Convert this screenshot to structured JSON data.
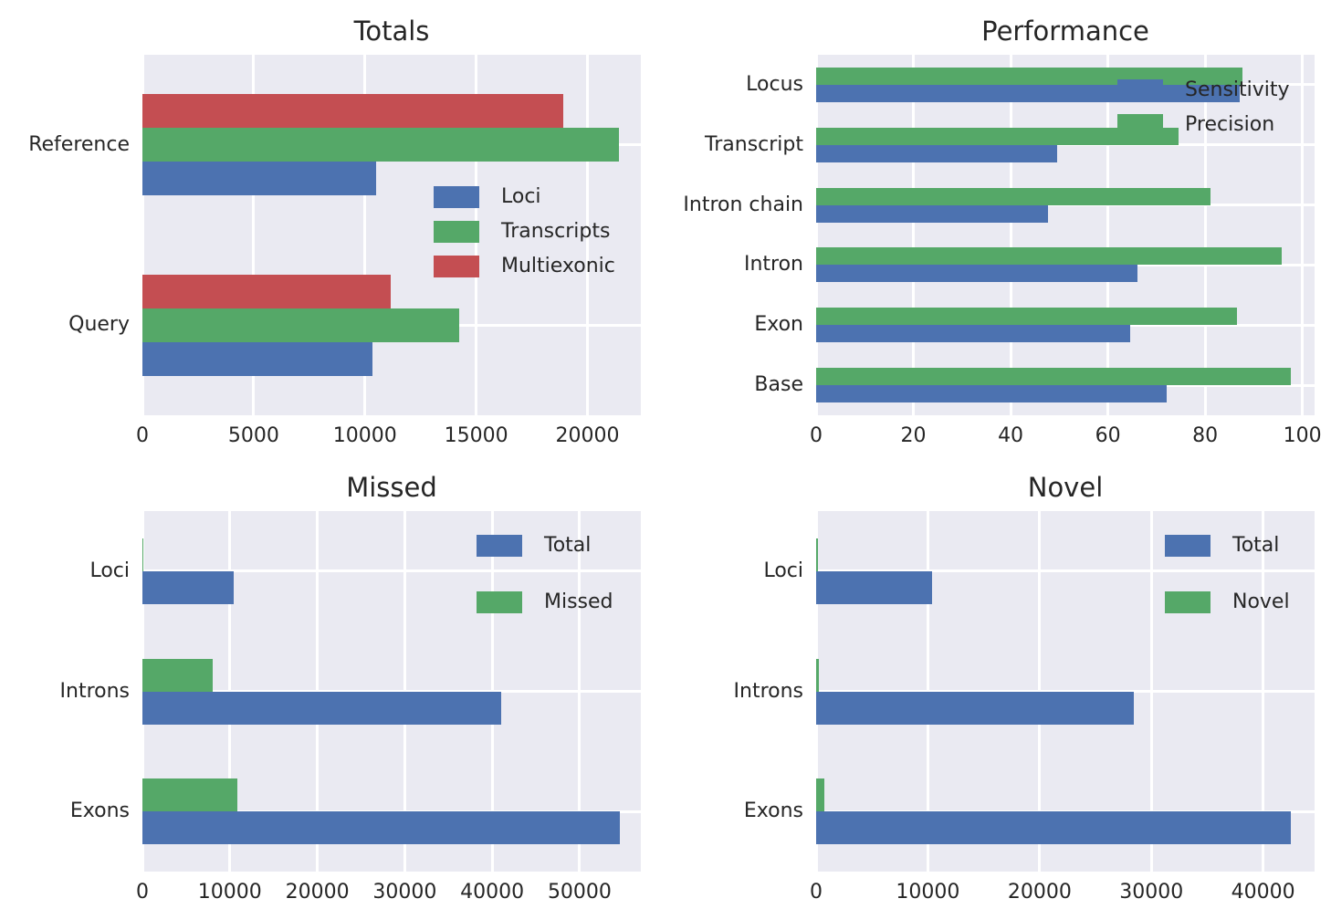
{
  "figure": {
    "background_color": "#ffffff",
    "plot_background_color": "#EAEAF2",
    "grid_color": "#ffffff",
    "text_color": "#262626",
    "palette": {
      "blue": "#4C72B0",
      "green": "#55A868",
      "red": "#C44E52"
    }
  },
  "chart_data": [
    {
      "id": "totals",
      "type": "bar",
      "orientation": "horizontal",
      "title": "Totals",
      "categories": [
        "Reference",
        "Query"
      ],
      "series": [
        {
          "name": "Loci",
          "color": "#4C72B0",
          "values": [
            10500,
            10350
          ]
        },
        {
          "name": "Transcripts",
          "color": "#55A868",
          "values": [
            21400,
            14250
          ]
        },
        {
          "name": "Multiexonic",
          "color": "#C44E52",
          "values": [
            18900,
            11150
          ]
        }
      ],
      "xlim": [
        0,
        22400
      ],
      "xticks": [
        0,
        5000,
        10000,
        15000,
        20000
      ],
      "grid": true,
      "legend_position": "center-right"
    },
    {
      "id": "performance",
      "type": "bar",
      "orientation": "horizontal",
      "title": "Performance",
      "categories": [
        "Locus",
        "Transcript",
        "Intron chain",
        "Intron",
        "Exon",
        "Base"
      ],
      "series": [
        {
          "name": "Sensitivity",
          "color": "#4C72B0",
          "values": [
            87.2,
            49.5,
            47.6,
            66.0,
            64.6,
            72.1
          ]
        },
        {
          "name": "Precision",
          "color": "#55A868",
          "values": [
            87.7,
            74.5,
            81.1,
            95.8,
            86.5,
            97.6
          ]
        }
      ],
      "xlim": [
        0,
        102.5
      ],
      "xticks": [
        0,
        20,
        40,
        60,
        80,
        100
      ],
      "grid": true,
      "legend_position": "top-right"
    },
    {
      "id": "missed",
      "type": "bar",
      "orientation": "horizontal",
      "title": "Missed",
      "categories": [
        "Loci",
        "Introns",
        "Exons"
      ],
      "series": [
        {
          "name": "Total",
          "color": "#4C72B0",
          "values": [
            10450,
            41000,
            54600
          ]
        },
        {
          "name": "Missed",
          "color": "#55A868",
          "values": [
            60,
            8050,
            10850
          ]
        }
      ],
      "xlim": [
        0,
        57000
      ],
      "xticks": [
        0,
        10000,
        20000,
        30000,
        40000,
        50000
      ],
      "grid": true,
      "legend_position": "top-right"
    },
    {
      "id": "novel",
      "type": "bar",
      "orientation": "horizontal",
      "title": "Novel",
      "categories": [
        "Loci",
        "Introns",
        "Exons"
      ],
      "series": [
        {
          "name": "Total",
          "color": "#4C72B0",
          "values": [
            10350,
            28400,
            42500
          ]
        },
        {
          "name": "Novel",
          "color": "#55A868",
          "values": [
            200,
            250,
            700
          ]
        }
      ],
      "xlim": [
        0,
        44600
      ],
      "xticks": [
        0,
        10000,
        20000,
        30000,
        40000
      ],
      "grid": true,
      "legend_position": "top-right"
    }
  ]
}
